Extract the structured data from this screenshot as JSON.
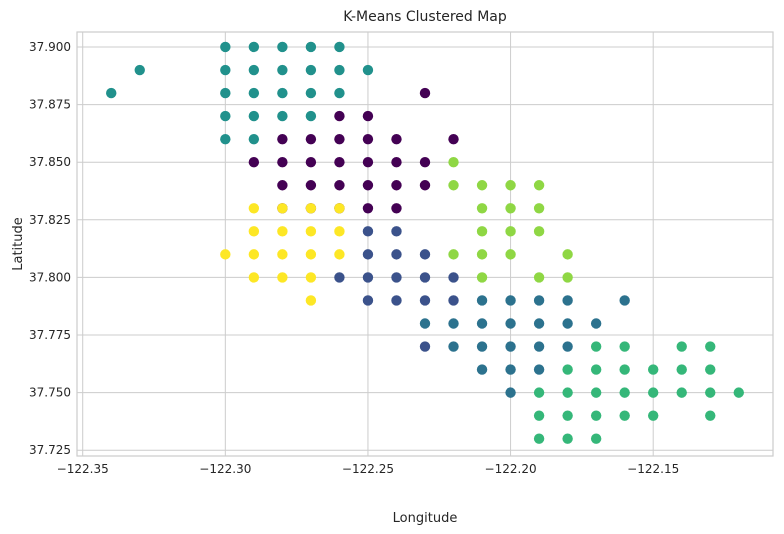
{
  "chart_data": {
    "type": "scatter",
    "title": "K-Means Clustered Map",
    "xlabel": "Longitude",
    "ylabel": "Latitude",
    "xlim": [
      -122.352,
      -122.108
    ],
    "ylim": [
      37.7225,
      37.9065
    ],
    "x_ticks": [
      -122.35,
      -122.3,
      -122.25,
      -122.2,
      -122.15
    ],
    "x_tick_labels": [
      "−122.35",
      "−122.30",
      "−122.25",
      "−122.20",
      "−122.15"
    ],
    "y_ticks": [
      37.725,
      37.75,
      37.775,
      37.8,
      37.825,
      37.85,
      37.875,
      37.9
    ],
    "y_tick_labels": [
      "37.725",
      "37.750",
      "37.775",
      "37.800",
      "37.825",
      "37.850",
      "37.875",
      "37.900"
    ],
    "grid": true,
    "series": [
      {
        "color": "#440154",
        "points": [
          [
            -122.23,
            37.88
          ],
          [
            -122.26,
            37.87
          ],
          [
            -122.25,
            37.87
          ],
          [
            -122.28,
            37.86
          ],
          [
            -122.27,
            37.86
          ],
          [
            -122.26,
            37.86
          ],
          [
            -122.25,
            37.86
          ],
          [
            -122.24,
            37.86
          ],
          [
            -122.22,
            37.86
          ],
          [
            -122.29,
            37.85
          ],
          [
            -122.28,
            37.85
          ],
          [
            -122.27,
            37.85
          ],
          [
            -122.26,
            37.85
          ],
          [
            -122.25,
            37.85
          ],
          [
            -122.24,
            37.85
          ],
          [
            -122.23,
            37.85
          ],
          [
            -122.28,
            37.84
          ],
          [
            -122.27,
            37.84
          ],
          [
            -122.26,
            37.84
          ],
          [
            -122.25,
            37.84
          ],
          [
            -122.24,
            37.84
          ],
          [
            -122.23,
            37.84
          ],
          [
            -122.28,
            37.83
          ],
          [
            -122.27,
            37.83
          ],
          [
            -122.26,
            37.83
          ],
          [
            -122.25,
            37.83
          ],
          [
            -122.24,
            37.83
          ]
        ]
      },
      {
        "color": "#3b528b",
        "points": [
          [
            -122.25,
            37.82
          ],
          [
            -122.24,
            37.82
          ],
          [
            -122.25,
            37.81
          ],
          [
            -122.24,
            37.81
          ],
          [
            -122.23,
            37.81
          ],
          [
            -122.26,
            37.8
          ],
          [
            -122.25,
            37.8
          ],
          [
            -122.24,
            37.8
          ],
          [
            -122.23,
            37.8
          ],
          [
            -122.22,
            37.8
          ],
          [
            -122.25,
            37.79
          ],
          [
            -122.24,
            37.79
          ],
          [
            -122.23,
            37.79
          ],
          [
            -122.22,
            37.79
          ],
          [
            -122.23,
            37.77
          ]
        ]
      },
      {
        "color": "#2c728e",
        "points": [
          [
            -122.21,
            37.79
          ],
          [
            -122.2,
            37.79
          ],
          [
            -122.19,
            37.79
          ],
          [
            -122.18,
            37.79
          ],
          [
            -122.16,
            37.79
          ],
          [
            -122.23,
            37.78
          ],
          [
            -122.22,
            37.78
          ],
          [
            -122.21,
            37.78
          ],
          [
            -122.2,
            37.78
          ],
          [
            -122.19,
            37.78
          ],
          [
            -122.18,
            37.78
          ],
          [
            -122.17,
            37.78
          ],
          [
            -122.22,
            37.77
          ],
          [
            -122.21,
            37.77
          ],
          [
            -122.2,
            37.77
          ],
          [
            -122.19,
            37.77
          ],
          [
            -122.18,
            37.77
          ],
          [
            -122.21,
            37.76
          ],
          [
            -122.2,
            37.76
          ],
          [
            -122.19,
            37.76
          ],
          [
            -122.2,
            37.75
          ]
        ]
      },
      {
        "color": "#21918c",
        "points": [
          [
            -122.34,
            37.88
          ],
          [
            -122.33,
            37.89
          ],
          [
            -122.3,
            37.9
          ],
          [
            -122.29,
            37.9
          ],
          [
            -122.28,
            37.9
          ],
          [
            -122.27,
            37.9
          ],
          [
            -122.26,
            37.9
          ],
          [
            -122.3,
            37.89
          ],
          [
            -122.29,
            37.89
          ],
          [
            -122.28,
            37.89
          ],
          [
            -122.27,
            37.89
          ],
          [
            -122.26,
            37.89
          ],
          [
            -122.25,
            37.89
          ],
          [
            -122.3,
            37.88
          ],
          [
            -122.29,
            37.88
          ],
          [
            -122.28,
            37.88
          ],
          [
            -122.27,
            37.88
          ],
          [
            -122.26,
            37.88
          ],
          [
            -122.3,
            37.87
          ],
          [
            -122.29,
            37.87
          ],
          [
            -122.28,
            37.87
          ],
          [
            -122.27,
            37.87
          ],
          [
            -122.3,
            37.86
          ],
          [
            -122.29,
            37.86
          ]
        ]
      },
      {
        "color": "#35b779",
        "points": [
          [
            -122.17,
            37.77
          ],
          [
            -122.16,
            37.77
          ],
          [
            -122.14,
            37.77
          ],
          [
            -122.13,
            37.77
          ],
          [
            -122.18,
            37.76
          ],
          [
            -122.17,
            37.76
          ],
          [
            -122.16,
            37.76
          ],
          [
            -122.15,
            37.76
          ],
          [
            -122.14,
            37.76
          ],
          [
            -122.13,
            37.76
          ],
          [
            -122.19,
            37.75
          ],
          [
            -122.18,
            37.75
          ],
          [
            -122.17,
            37.75
          ],
          [
            -122.16,
            37.75
          ],
          [
            -122.15,
            37.75
          ],
          [
            -122.14,
            37.75
          ],
          [
            -122.13,
            37.75
          ],
          [
            -122.12,
            37.75
          ],
          [
            -122.19,
            37.74
          ],
          [
            -122.18,
            37.74
          ],
          [
            -122.17,
            37.74
          ],
          [
            -122.16,
            37.74
          ],
          [
            -122.15,
            37.74
          ],
          [
            -122.13,
            37.74
          ],
          [
            -122.19,
            37.73
          ],
          [
            -122.18,
            37.73
          ],
          [
            -122.17,
            37.73
          ]
        ]
      },
      {
        "color": "#8fd744",
        "points": [
          [
            -122.22,
            37.85
          ],
          [
            -122.22,
            37.84
          ],
          [
            -122.21,
            37.84
          ],
          [
            -122.2,
            37.84
          ],
          [
            -122.19,
            37.84
          ],
          [
            -122.21,
            37.83
          ],
          [
            -122.2,
            37.83
          ],
          [
            -122.19,
            37.83
          ],
          [
            -122.21,
            37.82
          ],
          [
            -122.2,
            37.82
          ],
          [
            -122.19,
            37.82
          ],
          [
            -122.22,
            37.81
          ],
          [
            -122.21,
            37.81
          ],
          [
            -122.2,
            37.81
          ],
          [
            -122.18,
            37.81
          ],
          [
            -122.21,
            37.8
          ],
          [
            -122.19,
            37.8
          ],
          [
            -122.18,
            37.8
          ]
        ]
      },
      {
        "color": "#fde725",
        "points": [
          [
            -122.29,
            37.83
          ],
          [
            -122.28,
            37.83
          ],
          [
            -122.27,
            37.83
          ],
          [
            -122.26,
            37.83
          ],
          [
            -122.29,
            37.82
          ],
          [
            -122.28,
            37.82
          ],
          [
            -122.27,
            37.82
          ],
          [
            -122.26,
            37.82
          ],
          [
            -122.3,
            37.81
          ],
          [
            -122.29,
            37.81
          ],
          [
            -122.28,
            37.81
          ],
          [
            -122.27,
            37.81
          ],
          [
            -122.26,
            37.81
          ],
          [
            -122.29,
            37.8
          ],
          [
            -122.28,
            37.8
          ],
          [
            -122.27,
            37.8
          ],
          [
            -122.27,
            37.79
          ]
        ]
      }
    ]
  }
}
